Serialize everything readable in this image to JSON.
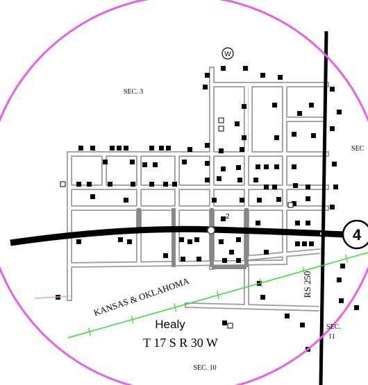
{
  "map": {
    "section_labels": [
      "SEC. 3",
      "SEC",
      "SEC. 10"
    ],
    "section_11": [
      "SEC.",
      "11"
    ],
    "town": "Healy",
    "township": "T 17 S R 30 W",
    "railroad": "KANSAS & OKLAHOMA",
    "road": "RS 250",
    "highway_shield": "4",
    "north_marker": "W",
    "lot_label": "2"
  }
}
